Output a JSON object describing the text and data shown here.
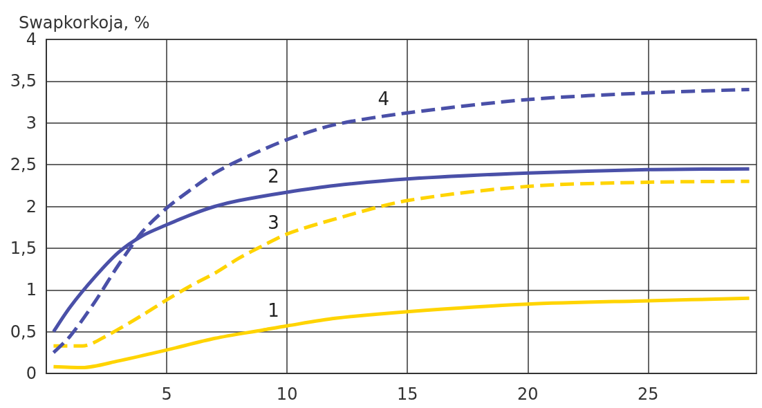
{
  "chart_data": {
    "type": "line",
    "ylabel": "Swapkorkoja, %",
    "xlim": [
      0,
      29.5
    ],
    "xticks": [
      5,
      10,
      15,
      20,
      25
    ],
    "ylim": [
      0,
      4
    ],
    "yticks": [
      0,
      {
        "value": 0.5,
        "label": "0,5"
      },
      1,
      {
        "value": 1.5,
        "label": "1,5"
      },
      2,
      {
        "value": 2.5,
        "label": "2,5"
      },
      3,
      {
        "value": 3.5,
        "label": "3,5"
      },
      4
    ],
    "grid": true,
    "marker": "none",
    "series": [
      {
        "name": "1",
        "color": "#ffd400",
        "line_style": "solid",
        "x": [
          0.3,
          1.5,
          3,
          5,
          7,
          9,
          10,
          12,
          15,
          20,
          25,
          29.2
        ],
        "values": [
          0.08,
          0.07,
          0.15,
          0.28,
          0.42,
          0.52,
          0.57,
          0.66,
          0.74,
          0.83,
          0.87,
          0.9
        ]
      },
      {
        "name": "2",
        "color": "#4a50a8",
        "line_style": "solid",
        "x": [
          0.3,
          1,
          2,
          3,
          4,
          5,
          6,
          7,
          8,
          10,
          12,
          15,
          20,
          25,
          29.2
        ],
        "values": [
          0.5,
          0.8,
          1.15,
          1.45,
          1.65,
          1.78,
          1.9,
          2.0,
          2.07,
          2.17,
          2.25,
          2.33,
          2.4,
          2.44,
          2.45
        ]
      },
      {
        "name": "3",
        "color": "#ffd400",
        "line_style": "dashed",
        "x": [
          0.3,
          1.5,
          2.5,
          4,
          5,
          6,
          7,
          8,
          9,
          10,
          12,
          15,
          20,
          25,
          29.2
        ],
        "values": [
          0.33,
          0.33,
          0.45,
          0.7,
          0.88,
          1.05,
          1.2,
          1.38,
          1.53,
          1.67,
          1.85,
          2.07,
          2.24,
          2.29,
          2.3
        ]
      },
      {
        "name": "4",
        "color": "#4a50a8",
        "line_style": "dashed",
        "x": [
          0.3,
          1,
          2,
          3,
          4,
          5,
          6,
          7,
          8,
          10,
          12,
          15,
          20,
          25,
          29.2
        ],
        "values": [
          0.25,
          0.45,
          0.85,
          1.3,
          1.7,
          1.98,
          2.2,
          2.4,
          2.55,
          2.8,
          2.98,
          3.12,
          3.28,
          3.36,
          3.4
        ]
      }
    ]
  }
}
